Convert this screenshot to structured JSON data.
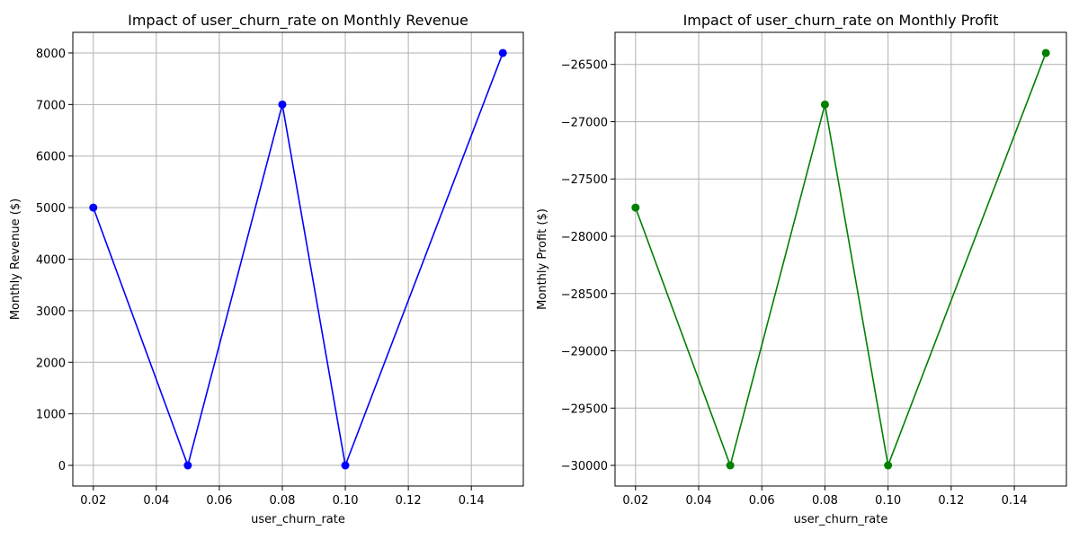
{
  "chart_data": [
    {
      "type": "line",
      "title": "Impact of user_churn_rate on Monthly Revenue",
      "xlabel": "user_churn_rate",
      "ylabel": "Monthly Revenue ($)",
      "x": [
        0.02,
        0.05,
        0.08,
        0.1,
        0.15
      ],
      "series": [
        {
          "values": [
            5000,
            0,
            7000,
            0,
            8000
          ],
          "color": "#0000ff",
          "marker": "circle"
        }
      ],
      "xticks": [
        "0.02",
        "0.04",
        "0.06",
        "0.08",
        "0.10",
        "0.12",
        "0.14"
      ],
      "yticks": [
        "0",
        "1000",
        "2000",
        "3000",
        "4000",
        "5000",
        "6000",
        "7000",
        "8000"
      ],
      "xlim": [
        0.0135,
        0.1565
      ],
      "ylim": [
        -400,
        8400
      ],
      "grid": true
    },
    {
      "type": "line",
      "title": "Impact of user_churn_rate on Monthly Profit",
      "xlabel": "user_churn_rate",
      "ylabel": "Monthly Profit ($)",
      "x": [
        0.02,
        0.05,
        0.08,
        0.1,
        0.15
      ],
      "series": [
        {
          "values": [
            -27750,
            -30000,
            -26850,
            -30000,
            -26400
          ],
          "color": "#008000",
          "marker": "circle"
        }
      ],
      "xticks": [
        "0.02",
        "0.04",
        "0.06",
        "0.08",
        "0.10",
        "0.12",
        "0.14"
      ],
      "yticks": [
        "-30000",
        "-29500",
        "-29000",
        "-28500",
        "-28000",
        "-27500",
        "-27000",
        "-26500"
      ],
      "xlim": [
        0.0135,
        0.1565
      ],
      "ylim": [
        -30180,
        -26220
      ],
      "grid": true
    }
  ]
}
